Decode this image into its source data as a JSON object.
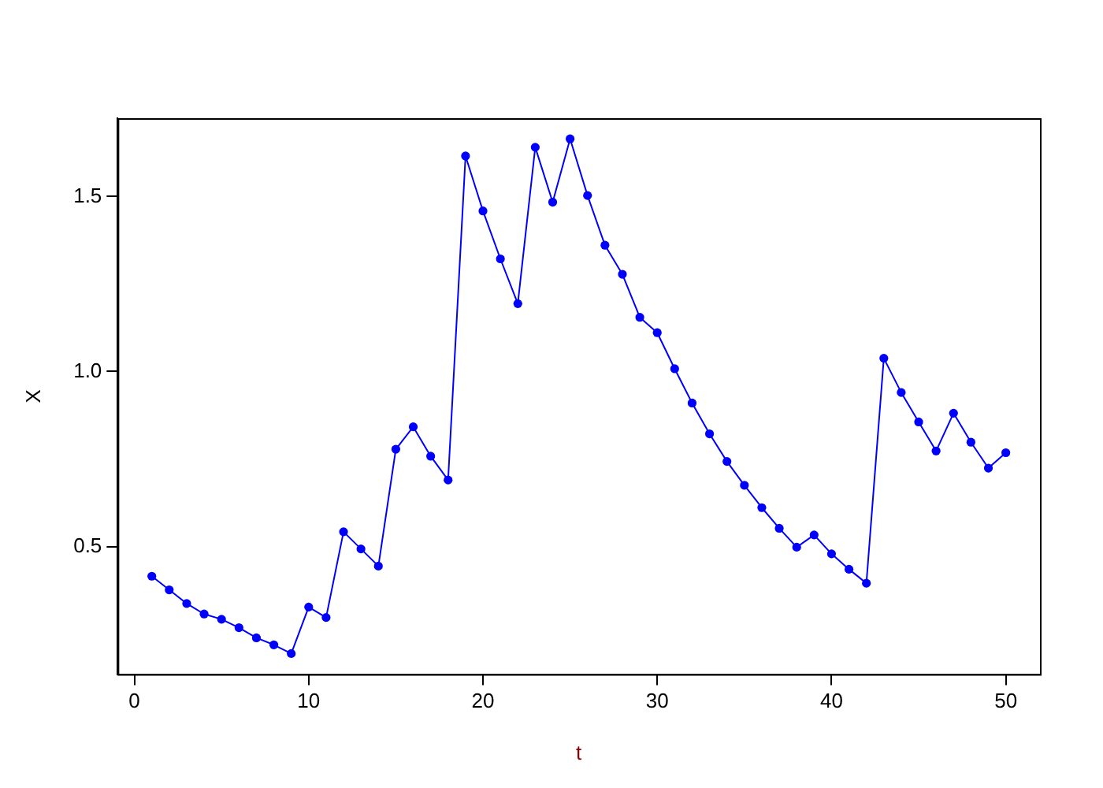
{
  "chart_data": {
    "type": "line",
    "xlabel": "t",
    "ylabel": "X",
    "x": [
      1,
      2,
      3,
      4,
      5,
      6,
      7,
      8,
      9,
      10,
      11,
      12,
      13,
      14,
      15,
      16,
      17,
      18,
      19,
      20,
      21,
      22,
      23,
      24,
      25,
      26,
      27,
      28,
      29,
      30,
      31,
      32,
      33,
      34,
      35,
      36,
      37,
      38,
      39,
      40,
      41,
      42,
      43,
      44,
      45,
      46,
      47,
      48,
      49,
      50
    ],
    "series": [
      {
        "color": "#0000ff",
        "values": [
          0.415,
          0.376,
          0.337,
          0.307,
          0.292,
          0.268,
          0.239,
          0.219,
          0.194,
          0.327,
          0.297,
          0.542,
          0.493,
          0.444,
          0.778,
          0.842,
          0.758,
          0.69,
          1.616,
          1.459,
          1.322,
          1.194,
          1.641,
          1.484,
          1.665,
          1.503,
          1.361,
          1.278,
          1.155,
          1.111,
          1.008,
          0.91,
          0.822,
          0.743,
          0.675,
          0.611,
          0.552,
          0.498,
          0.533,
          0.479,
          0.435,
          0.395,
          1.038,
          0.94,
          0.856,
          0.773,
          0.881,
          0.798,
          0.724,
          0.768
        ]
      }
    ],
    "xlim": [
      -0.96,
      51.96
    ],
    "xticks": [
      0,
      10,
      20,
      30,
      40,
      50
    ],
    "ylim": [
      0.135,
      1.724
    ],
    "yticks": [
      {
        "value": 0.5,
        "label": "0.5"
      },
      {
        "value": 1.0,
        "label": "1.0"
      },
      {
        "value": 1.5,
        "label": "1.5"
      }
    ],
    "marker": "circle",
    "line_style": "solid",
    "grid": false,
    "legend": false
  }
}
